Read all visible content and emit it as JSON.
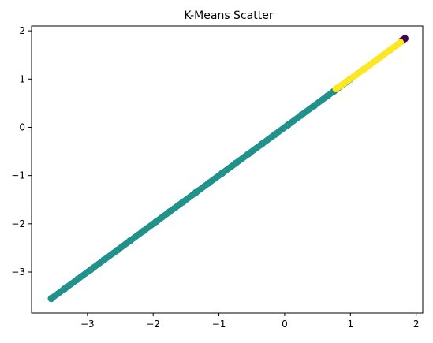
{
  "chart_data": {
    "type": "scatter",
    "title": "K-Means Scatter",
    "xlabel": "",
    "ylabel": "",
    "xlim": [
      -3.85,
      2.1
    ],
    "ylim": [
      -3.85,
      2.1
    ],
    "x_ticks": [
      -3,
      -2,
      -1,
      0,
      1,
      2
    ],
    "y_ticks": [
      -3,
      -2,
      -1,
      0,
      1,
      2
    ],
    "x_tick_labels": [
      "−3",
      "−2",
      "−1",
      "0",
      "1",
      "2"
    ],
    "y_tick_labels": [
      "−3",
      "−2",
      "−1",
      "0",
      "1",
      "2"
    ],
    "grid": false,
    "legend": "none",
    "series": [
      {
        "cluster": 0,
        "color": "#440154",
        "x": [
          1.77,
          1.79,
          1.81,
          1.83
        ],
        "y": [
          1.78,
          1.8,
          1.82,
          1.84
        ]
      },
      {
        "cluster": 1,
        "color": "#21918c",
        "x": [
          -3.55,
          -3.35,
          -3.15,
          -2.95,
          -2.75,
          -2.55,
          -2.35,
          -2.15,
          -1.95,
          -1.75,
          -1.55,
          -1.35,
          -1.15,
          -0.95,
          -0.75,
          -0.55,
          -0.35,
          -0.15,
          0.05,
          0.25,
          0.45,
          0.65,
          0.75,
          0.95,
          1.0
        ],
        "y": [
          -3.55,
          -3.35,
          -3.15,
          -2.95,
          -2.75,
          -2.55,
          -2.35,
          -2.15,
          -1.95,
          -1.75,
          -1.55,
          -1.35,
          -1.15,
          -0.95,
          -0.75,
          -0.55,
          -0.35,
          -0.15,
          0.05,
          0.25,
          0.45,
          0.65,
          0.75,
          0.95,
          1.0
        ]
      },
      {
        "cluster": 2,
        "color": "#fde725",
        "x": [
          0.78,
          0.85,
          1.1,
          1.2,
          1.3,
          1.4,
          1.5,
          1.6,
          1.7,
          1.76
        ],
        "y": [
          0.8,
          0.86,
          1.1,
          1.2,
          1.3,
          1.4,
          1.5,
          1.6,
          1.7,
          1.76
        ]
      }
    ]
  }
}
